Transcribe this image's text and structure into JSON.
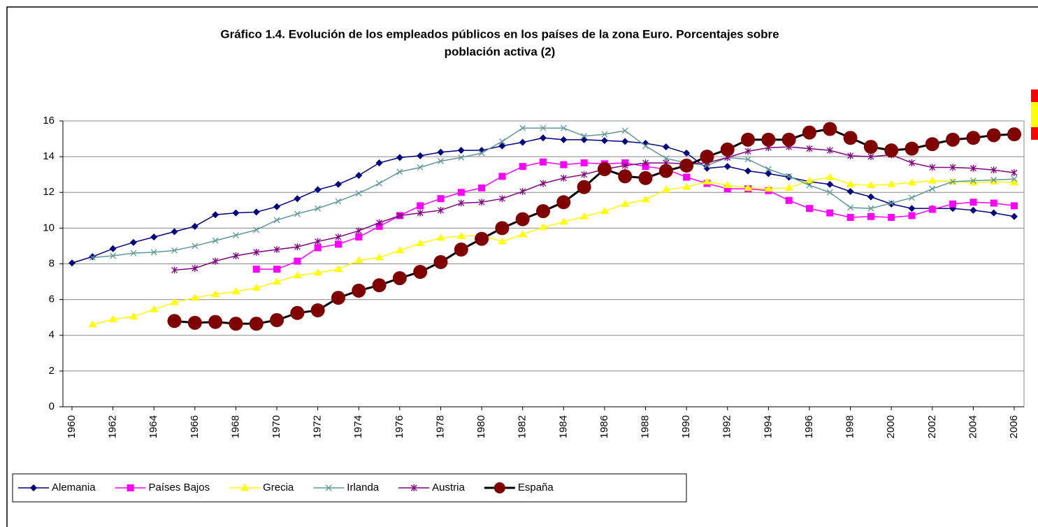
{
  "chart_data": {
    "type": "line",
    "title": [
      "Gráfico 1.4. Evolución de los empleados públicos en los países de la zona Euro. Porcentajes sobre",
      "población activa (2)"
    ],
    "x": [
      1960,
      1961,
      1962,
      1963,
      1964,
      1965,
      1966,
      1967,
      1968,
      1969,
      1970,
      1971,
      1972,
      1973,
      1974,
      1975,
      1976,
      1977,
      1978,
      1979,
      1980,
      1981,
      1982,
      1983,
      1984,
      1985,
      1986,
      1987,
      1988,
      1989,
      1990,
      1991,
      1992,
      1993,
      1994,
      1995,
      1996,
      1997,
      1998,
      1999,
      2000,
      2001,
      2002,
      2003,
      2004,
      2005,
      2006
    ],
    "xlim": [
      1960,
      2006
    ],
    "xticks": [
      1960,
      1962,
      1964,
      1966,
      1968,
      1970,
      1972,
      1974,
      1976,
      1978,
      1980,
      1982,
      1984,
      1986,
      1988,
      1990,
      1992,
      1994,
      1996,
      1998,
      2000,
      2002,
      2004,
      2006
    ],
    "ylim": [
      0,
      16
    ],
    "yticks": [
      0,
      2,
      4,
      6,
      8,
      10,
      12,
      14,
      16
    ],
    "grid": true,
    "legend": "bottom",
    "series": [
      {
        "name": "Alemania",
        "color": "#000080",
        "marker": "diamond",
        "values": [
          8.05,
          8.4,
          8.85,
          9.2,
          9.5,
          9.8,
          10.1,
          10.75,
          10.85,
          10.9,
          11.2,
          11.65,
          12.15,
          12.45,
          12.95,
          13.65,
          13.95,
          14.05,
          14.25,
          14.35,
          14.35,
          14.6,
          14.8,
          15.05,
          14.95,
          14.95,
          14.9,
          14.85,
          14.75,
          14.55,
          14.2,
          13.35,
          13.45,
          13.2,
          13.05,
          12.85,
          12.6,
          12.45,
          12.05,
          11.75,
          11.35,
          11.1,
          11.1,
          11.1,
          11.0,
          10.85,
          10.65
        ]
      },
      {
        "name": "Países Bajos",
        "color": "#ff00ff",
        "marker": "square",
        "values": [
          null,
          null,
          null,
          null,
          null,
          null,
          null,
          null,
          null,
          7.7,
          7.7,
          8.15,
          8.9,
          9.1,
          9.5,
          10.1,
          10.7,
          11.25,
          11.65,
          12.0,
          12.25,
          12.9,
          13.45,
          13.7,
          13.55,
          13.65,
          13.6,
          13.65,
          13.45,
          13.3,
          12.85,
          12.5,
          12.2,
          12.2,
          12.1,
          11.55,
          11.1,
          10.85,
          10.6,
          10.65,
          10.6,
          10.7,
          11.05,
          11.35,
          11.45,
          11.4,
          11.25
        ]
      },
      {
        "name": "Grecia",
        "color": "#ffff00",
        "marker": "triangle",
        "values": [
          null,
          4.6,
          4.9,
          5.05,
          5.45,
          5.85,
          6.1,
          6.3,
          6.45,
          6.65,
          7.0,
          7.35,
          7.5,
          7.7,
          8.2,
          8.35,
          8.75,
          9.15,
          9.45,
          9.55,
          9.6,
          9.25,
          9.65,
          10.05,
          10.35,
          10.65,
          10.95,
          11.35,
          11.6,
          12.15,
          12.3,
          12.6,
          12.4,
          12.25,
          12.2,
          12.25,
          12.65,
          12.85,
          12.45,
          12.4,
          12.45,
          12.55,
          12.65,
          12.6,
          12.55,
          12.6,
          12.55
        ]
      },
      {
        "name": "Irlanda",
        "color": "#5f9898",
        "marker": "x",
        "values": [
          null,
          8.35,
          8.45,
          8.6,
          8.65,
          8.75,
          9.0,
          9.3,
          9.6,
          9.9,
          10.45,
          10.8,
          11.1,
          11.5,
          11.95,
          12.5,
          13.15,
          13.4,
          13.75,
          13.95,
          14.2,
          14.85,
          15.6,
          15.6,
          15.6,
          15.15,
          15.25,
          15.45,
          14.6,
          13.9,
          13.65,
          13.5,
          13.95,
          13.85,
          13.3,
          12.9,
          12.4,
          12.0,
          11.15,
          11.1,
          11.4,
          11.7,
          12.2,
          12.6,
          12.65,
          12.7,
          12.75
        ]
      },
      {
        "name": "Austria",
        "color": "#800080",
        "marker": "asterisk",
        "values": [
          null,
          null,
          null,
          null,
          null,
          7.65,
          7.75,
          8.15,
          8.45,
          8.65,
          8.8,
          8.95,
          9.25,
          9.5,
          9.85,
          10.3,
          10.7,
          10.85,
          11.0,
          11.4,
          11.45,
          11.65,
          12.05,
          12.5,
          12.8,
          13.0,
          13.3,
          13.5,
          13.65,
          13.65,
          13.6,
          13.65,
          13.95,
          14.3,
          14.5,
          14.55,
          14.45,
          14.35,
          14.05,
          14.0,
          14.1,
          13.65,
          13.4,
          13.4,
          13.35,
          13.25,
          13.1
        ]
      },
      {
        "name": "España",
        "color": "#800000",
        "line_color": "#000000",
        "marker": "circle",
        "values": [
          null,
          null,
          null,
          null,
          null,
          4.8,
          4.7,
          4.75,
          4.65,
          4.65,
          4.85,
          5.25,
          5.4,
          6.1,
          6.5,
          6.8,
          7.2,
          7.55,
          8.1,
          8.8,
          9.4,
          10.0,
          10.5,
          10.95,
          11.45,
          12.3,
          13.3,
          12.9,
          12.8,
          13.2,
          13.5,
          14.0,
          14.4,
          14.95,
          14.95,
          14.95,
          15.35,
          15.55,
          15.05,
          14.55,
          14.35,
          14.45,
          14.7,
          14.95,
          15.05,
          15.2,
          15.25
        ]
      }
    ]
  }
}
